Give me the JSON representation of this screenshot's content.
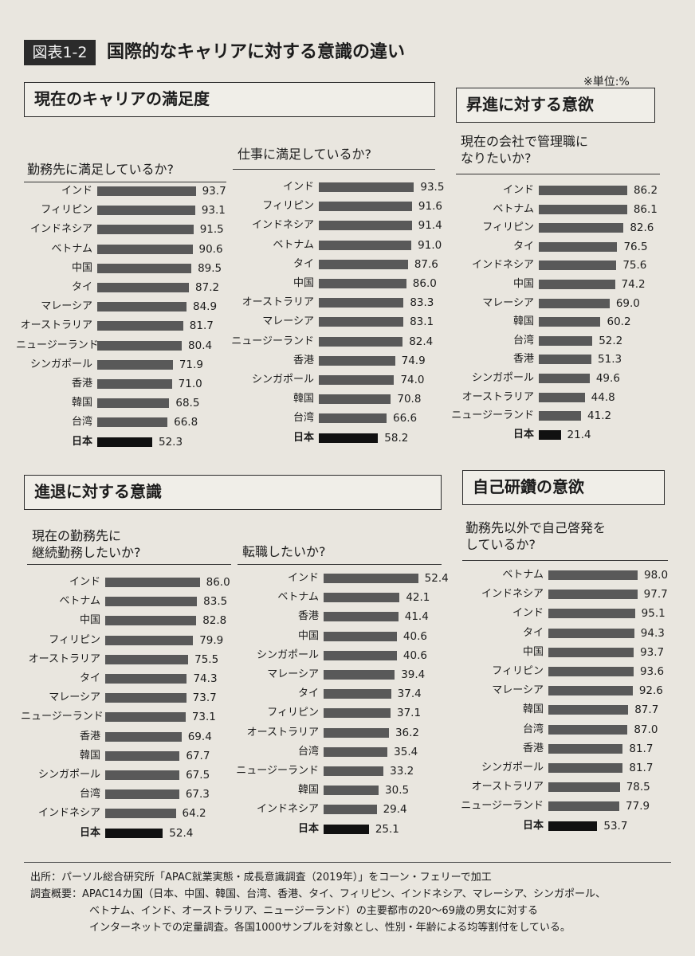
{
  "figure": {
    "label": "図表1-2",
    "title": "国際的なキャリアに対する意識の違い",
    "unit_note": "※単位:%"
  },
  "sections": {
    "satisfaction": "現在のキャリアの満足度",
    "promotion": "昇進に対する意欲",
    "retirement": "進退に対する意識",
    "selfdev": "自己研鑽の意欲"
  },
  "chart_data": [
    {
      "id": "workplace_satisfaction",
      "type": "bar",
      "title": "勤務先に満足しているか?",
      "categories": [
        "インド",
        "フィリピン",
        "インドネシア",
        "ベトナム",
        "中国",
        "タイ",
        "マレーシア",
        "オーストラリア",
        "ニュージーランド",
        "シンガポール",
        "香港",
        "韓国",
        "台湾",
        "日本"
      ],
      "values": [
        93.7,
        93.1,
        91.5,
        90.6,
        89.5,
        87.2,
        84.9,
        81.7,
        80.4,
        71.9,
        71.0,
        68.5,
        66.8,
        52.3
      ],
      "value_labels": [
        "93.7",
        "93.1",
        "91.5",
        "90.6",
        "89.5",
        "87.2",
        "84.9",
        "81.7",
        "80.4",
        "71.9",
        "71.0",
        "68.5",
        "66.8",
        "52.3"
      ],
      "highlight": "日本"
    },
    {
      "id": "job_satisfaction",
      "type": "bar",
      "title": "仕事に満足しているか?",
      "categories": [
        "インド",
        "フィリピン",
        "インドネシア",
        "ベトナム",
        "タイ",
        "中国",
        "オーストラリア",
        "マレーシア",
        "ニュージーランド",
        "香港",
        "シンガポール",
        "韓国",
        "台湾",
        "日本"
      ],
      "values": [
        93.5,
        91.6,
        91.4,
        91.0,
        87.6,
        86.0,
        83.3,
        83.1,
        82.4,
        74.9,
        74.0,
        70.8,
        66.6,
        58.2
      ],
      "value_labels": [
        "93.5",
        "91.6",
        "91.4",
        "91.0",
        "87.6",
        "86.0",
        "83.3",
        "83.1",
        "82.4",
        "74.9",
        "74.0",
        "70.8",
        "66.6",
        "58.2"
      ],
      "highlight": "日本"
    },
    {
      "id": "manager_desire",
      "type": "bar",
      "title": "現在の会社で管理職に\nなりたいか?",
      "categories": [
        "インド",
        "ベトナム",
        "フィリピン",
        "タイ",
        "インドネシア",
        "中国",
        "マレーシア",
        "韓国",
        "台湾",
        "香港",
        "シンガポール",
        "オーストラリア",
        "ニュージーランド",
        "日本"
      ],
      "values": [
        86.2,
        86.1,
        82.6,
        76.5,
        75.6,
        74.2,
        69.0,
        60.2,
        52.2,
        51.3,
        49.6,
        44.8,
        41.2,
        21.4
      ],
      "value_labels": [
        "86.2",
        "86.1",
        "82.6",
        "76.5",
        "75.6",
        "74.2",
        "69.0",
        "60.2",
        "52.2",
        "51.3",
        "49.6",
        "44.8",
        "41.2",
        "21.4"
      ],
      "highlight": "日本"
    },
    {
      "id": "continue_work",
      "type": "bar",
      "title": "現在の勤務先に\n継続勤務したいか?",
      "categories": [
        "インド",
        "ベトナム",
        "中国",
        "フィリピン",
        "オーストラリア",
        "タイ",
        "マレーシア",
        "ニュージーランド",
        "香港",
        "韓国",
        "シンガポール",
        "台湾",
        "インドネシア",
        "日本"
      ],
      "values": [
        86.0,
        83.5,
        82.8,
        79.9,
        75.5,
        74.3,
        73.7,
        73.1,
        69.4,
        67.7,
        67.5,
        67.3,
        64.2,
        52.4
      ],
      "value_labels": [
        "86.0",
        "83.5",
        "82.8",
        "79.9",
        "75.5",
        "74.3",
        "73.7",
        "73.1",
        "69.4",
        "67.7",
        "67.5",
        "67.3",
        "64.2",
        "52.4"
      ],
      "highlight": "日本"
    },
    {
      "id": "job_change",
      "type": "bar",
      "title": "転職したいか?",
      "categories": [
        "インド",
        "ベトナム",
        "香港",
        "中国",
        "シンガポール",
        "マレーシア",
        "タイ",
        "フィリピン",
        "オーストラリア",
        "台湾",
        "ニュージーランド",
        "韓国",
        "インドネシア",
        "日本"
      ],
      "values": [
        52.4,
        42.1,
        41.4,
        40.6,
        40.6,
        39.4,
        37.4,
        37.1,
        36.2,
        35.4,
        33.2,
        30.5,
        29.4,
        25.1
      ],
      "value_labels": [
        "52.4",
        "42.1",
        "41.4",
        "40.6",
        "40.6",
        "39.4",
        "37.4",
        "37.1",
        "36.2",
        "35.4",
        "33.2",
        "30.5",
        "29.4",
        "25.1"
      ],
      "highlight": "日本"
    },
    {
      "id": "self_development",
      "type": "bar",
      "title": "勤務先以外で自己啓発を\nしているか?",
      "categories": [
        "ベトナム",
        "インドネシア",
        "インド",
        "タイ",
        "中国",
        "フィリピン",
        "マレーシア",
        "韓国",
        "台湾",
        "香港",
        "シンガポール",
        "オーストラリア",
        "ニュージーランド",
        "日本"
      ],
      "values": [
        98.0,
        97.7,
        95.1,
        94.3,
        93.7,
        93.6,
        92.6,
        87.7,
        87.0,
        81.7,
        81.7,
        78.5,
        77.9,
        53.7
      ],
      "value_labels": [
        "98.0",
        "97.7",
        "95.1",
        "94.3",
        "93.7",
        "93.6",
        "92.6",
        "87.7",
        "87.0",
        "81.7",
        "81.7",
        "78.5",
        "77.9",
        "53.7"
      ],
      "highlight": "日本"
    }
  ],
  "footer": {
    "source": "出所：パーソル総合研究所「APAC就業実態・成長意識調査（2019年）」をコーン・フェリーで加工",
    "survey_line1": "調査概要：APAC14カ国（日本、中国、韓国、台湾、香港、タイ、フィリピン、インドネシア、マレーシア、シンガポール、",
    "survey_line2": "ベトナム、インド、オーストラリア、ニュージーランド）の主要都市の20～69歳の男女に対する",
    "survey_line3": "インターネットでの定量調査。各国1000サンプルを対象とし、性別・年齢による均等割付をしている。"
  }
}
